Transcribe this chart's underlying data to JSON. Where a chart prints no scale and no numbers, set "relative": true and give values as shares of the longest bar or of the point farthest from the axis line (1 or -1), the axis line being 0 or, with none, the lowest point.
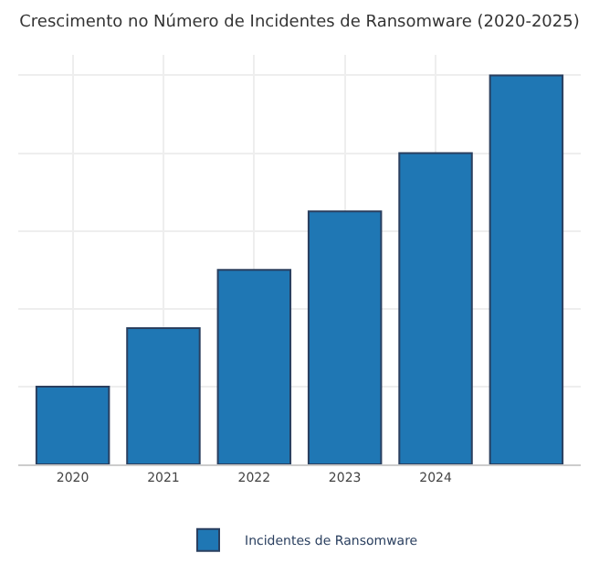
{
  "chart_data": {
    "type": "bar",
    "title": "Crescimento no Número de Incidentes de Ransomware (2020-2025)",
    "categories": [
      "2020",
      "2021",
      "2022",
      "2023",
      "2024",
      null
    ],
    "relative": true,
    "grid": true,
    "legend": "bottom",
    "series": [
      {
        "name": "Incidentes de Ransomware",
        "color": "#1f77b4",
        "values": [
          0.2,
          0.35,
          0.5,
          0.65,
          0.8,
          1.0
        ]
      }
    ]
  }
}
